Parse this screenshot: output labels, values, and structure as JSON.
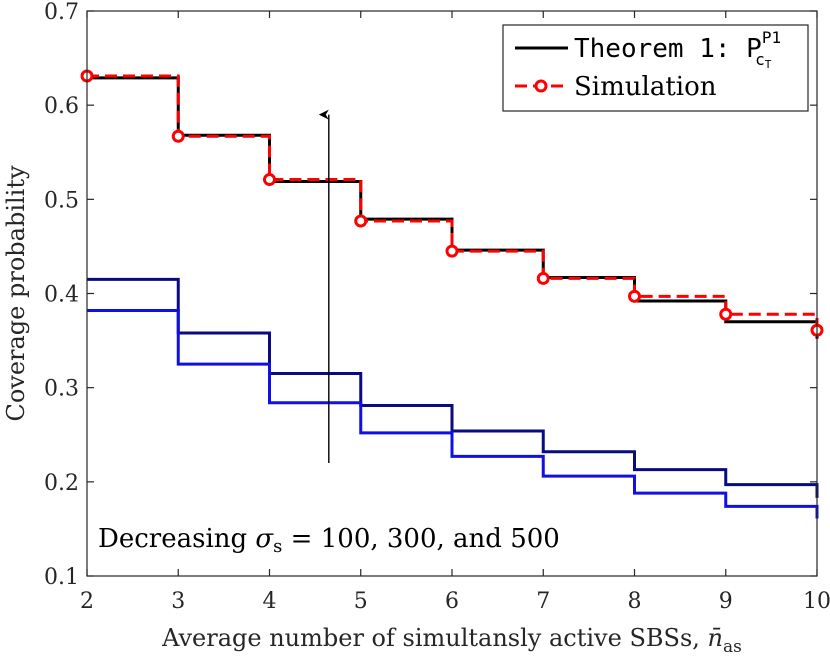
{
  "chart_data": {
    "type": "line",
    "title": "",
    "xlabel": "Average number of simultansly active SBSs, ",
    "xlabel_symbol": "n̄",
    "xlabel_subscript": "as",
    "ylabel": "Coverage probability",
    "xlim": [
      2,
      10
    ],
    "ylim": [
      0.1,
      0.7
    ],
    "x_ticks": [
      2,
      3,
      4,
      5,
      6,
      7,
      8,
      9,
      10
    ],
    "y_ticks": [
      0.1,
      0.2,
      0.3,
      0.4,
      0.5,
      0.6,
      0.7
    ],
    "x_tick_labels": [
      "2",
      "3",
      "4",
      "5",
      "6",
      "7",
      "8",
      "9",
      "10"
    ],
    "y_tick_labels": [
      "0.1",
      "0.2",
      "0.3",
      "0.4",
      "0.5",
      "0.6",
      "0.7"
    ],
    "grid": false,
    "legend_position": "top-right",
    "series": [
      {
        "name": "Theorem 1: P",
        "legend_superscript": "P1",
        "legend_subscript": "c",
        "legend_subsubscript": "T",
        "style": "solid",
        "color": "#000000",
        "step": true,
        "x": [
          2,
          3,
          4,
          5,
          6,
          7,
          8,
          9,
          10
        ],
        "values": [
          0.629,
          0.568,
          0.519,
          0.479,
          0.446,
          0.417,
          0.392,
          0.37,
          0.352
        ]
      },
      {
        "name": "Simulation",
        "style": "dashed",
        "color": "#ff0000",
        "marker": "circle",
        "step": true,
        "x": [
          2,
          3,
          4,
          5,
          6,
          7,
          8,
          9,
          10
        ],
        "values": [
          0.631,
          0.567,
          0.521,
          0.477,
          0.445,
          0.416,
          0.397,
          0.378,
          0.361
        ]
      },
      {
        "name": "σs = 300",
        "style": "solid",
        "color": "#0a0a82",
        "step": true,
        "in_legend": false,
        "x": [
          2,
          3,
          4,
          5,
          6,
          7,
          8,
          9,
          10
        ],
        "values": [
          0.415,
          0.358,
          0.315,
          0.281,
          0.254,
          0.232,
          0.213,
          0.197,
          0.183
        ]
      },
      {
        "name": "σs = 500",
        "style": "solid",
        "color": "#1010e6",
        "step": true,
        "in_legend": false,
        "x": [
          2,
          3,
          4,
          5,
          6,
          7,
          8,
          9,
          10
        ],
        "values": [
          0.382,
          0.325,
          0.284,
          0.252,
          0.227,
          0.206,
          0.188,
          0.174,
          0.161
        ]
      }
    ],
    "annotations": [
      {
        "text_prefix": "Decreasing ",
        "text_symbol": "σ",
        "text_subscript": "s",
        "text_suffix": " = 100, 300, and 500",
        "arrow_from": [
          4.65,
          0.22
        ],
        "arrow_to": [
          4.65,
          0.59
        ]
      }
    ]
  }
}
